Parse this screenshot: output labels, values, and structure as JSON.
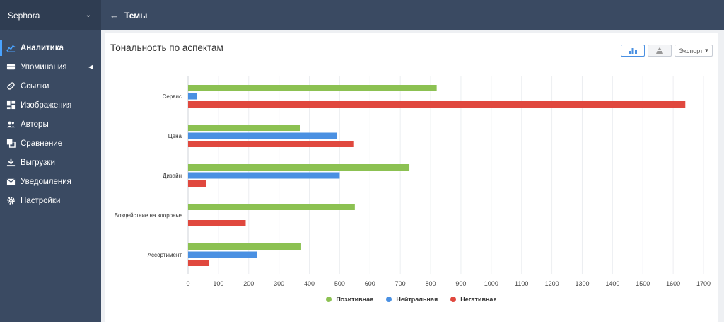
{
  "app": {
    "name": "Sephora"
  },
  "topbar": {
    "back_icon": "arrow-left-icon",
    "title": "Темы"
  },
  "sidebar": {
    "items": [
      {
        "label": "Аналитика",
        "icon": "analytics-icon",
        "active": true
      },
      {
        "label": "Упоминания",
        "icon": "mentions-icon",
        "has_submenu": true
      },
      {
        "label": "Ссылки",
        "icon": "link-icon"
      },
      {
        "label": "Изображения",
        "icon": "images-icon"
      },
      {
        "label": "Авторы",
        "icon": "authors-icon"
      },
      {
        "label": "Сравнение",
        "icon": "compare-icon"
      },
      {
        "label": "Выгрузки",
        "icon": "download-icon"
      },
      {
        "label": "Уведомления",
        "icon": "mail-icon"
      },
      {
        "label": "Настройки",
        "icon": "gear-icon"
      }
    ]
  },
  "card": {
    "title": "Тональность по аспектам",
    "tools": {
      "export_label": "Экспорт"
    }
  },
  "chart_data": {
    "type": "bar",
    "orientation": "horizontal",
    "title": "Тональность по аспектам",
    "categories": [
      "Сервис",
      "Цена",
      "Дизайн",
      "Воздействие на здоровье",
      "Ассортимент"
    ],
    "series": [
      {
        "name": "Позитивная",
        "color": "#8cc152",
        "values": [
          820,
          370,
          730,
          550,
          373
        ]
      },
      {
        "name": "Нейтральная",
        "color": "#4a90e2",
        "values": [
          30,
          490,
          500,
          0,
          228
        ]
      },
      {
        "name": "Негативная",
        "color": "#e0483e",
        "values": [
          1640,
          545,
          60,
          190,
          70
        ]
      }
    ],
    "xlim": [
      0,
      1700
    ],
    "xticks": [
      0,
      100,
      200,
      300,
      400,
      500,
      600,
      700,
      800,
      900,
      1000,
      1100,
      1200,
      1300,
      1400,
      1500,
      1600,
      1700
    ],
    "grid": true,
    "legend": "bottom-center"
  }
}
